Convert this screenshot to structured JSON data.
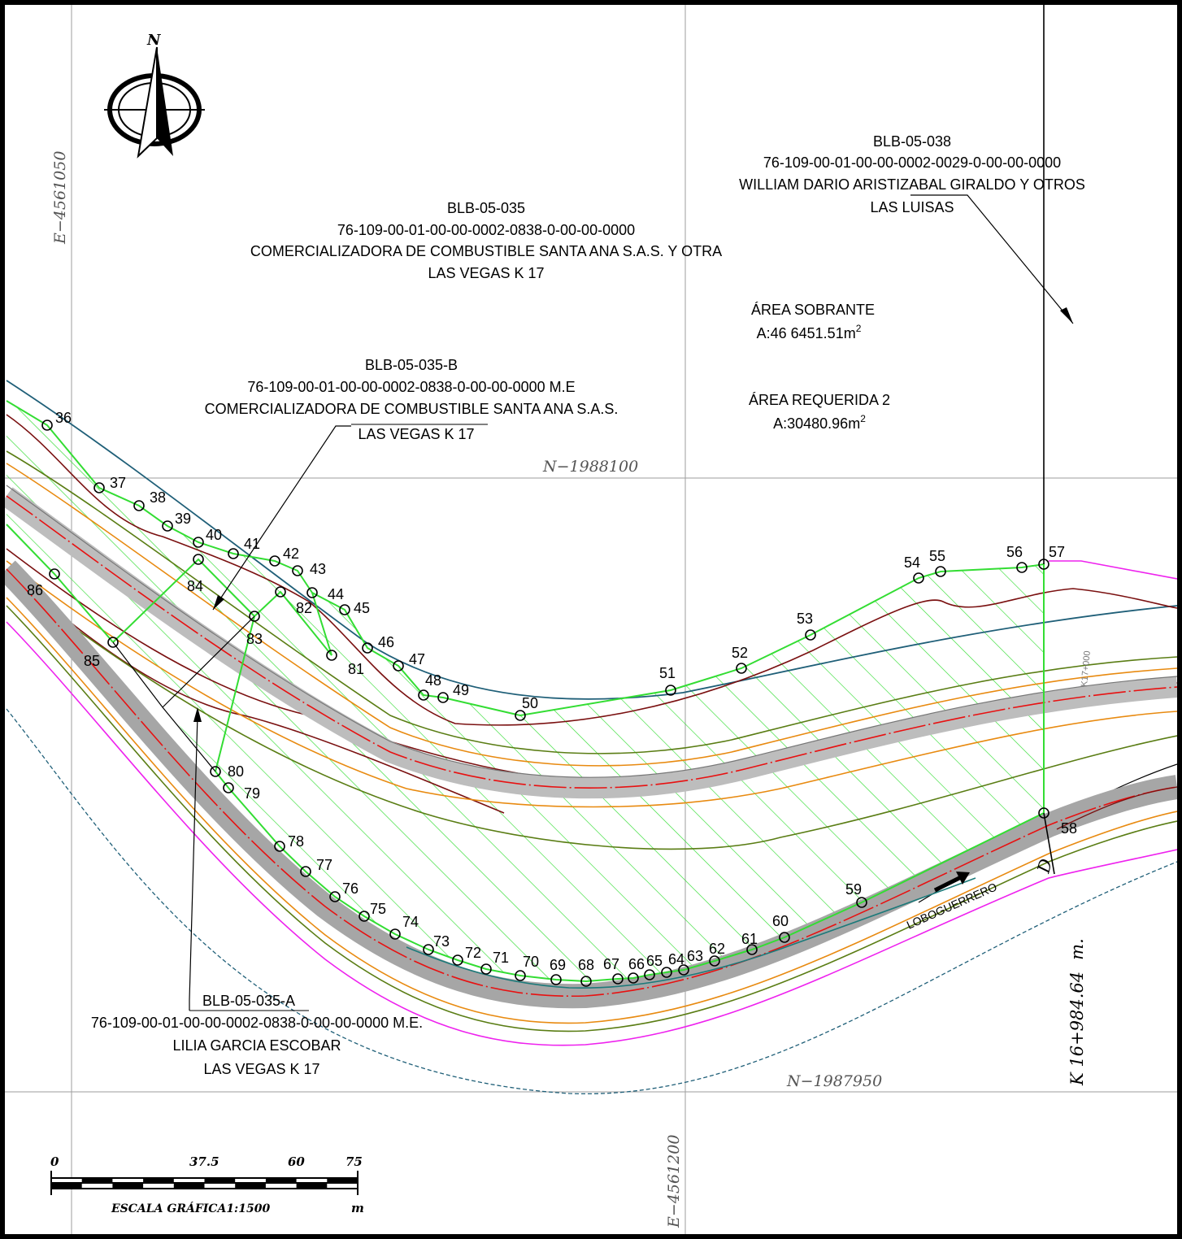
{
  "grid": {
    "e_left": "E−4561050",
    "e_mid": "E−4561200",
    "n_top": "N−1988100",
    "n_bottom": "N−1987950"
  },
  "north_label": "N",
  "parcels": {
    "blb_035": {
      "code": "BLB-05-035",
      "cadastral": "76-109-00-01-00-00-0002-0838-0-00-00-0000",
      "owner": "COMERCIALIZADORA DE COMBUSTIBLE SANTA ANA S.A.S. Y OTRA",
      "place": "LAS VEGAS K 17"
    },
    "blb_035_b": {
      "code": "BLB-05-035-B",
      "cadastral": "76-109-00-01-00-00-0002-0838-0-00-00-0000 M.E",
      "owner": "COMERCIALIZADORA DE COMBUSTIBLE SANTA ANA S.A.S.",
      "place": "LAS VEGAS K 17"
    },
    "blb_038": {
      "code": "BLB-05-038",
      "cadastral": "76-109-00-01-00-00-0002-0029-0-00-00-0000",
      "owner": "WILLIAM DARIO ARISTIZABAL GIRALDO Y OTROS",
      "place": "LAS LUISAS"
    },
    "blb_035_a": {
      "code": "BLB-05-035-A",
      "cadastral": "76-109-00-01-00-00-0002-0838-0-00-00-0000 M.E.",
      "owner": "LILIA GARCIA ESCOBAR",
      "place": "LAS VEGAS K 17"
    }
  },
  "areas": {
    "sobrante_title": "ÁREA SOBRANTE",
    "sobrante_value": "A:46 6451.51m",
    "requerida_title": "ÁREA REQUERIDA 2",
    "requerida_value": "A:30480.96m",
    "sup": "2"
  },
  "road": {
    "station": "K 16+984.64",
    "station_unit": "m.",
    "d_label": "D",
    "name": "LOBOGUERRERO",
    "k17": "K17+000"
  },
  "vertices": [
    "36",
    "37",
    "38",
    "39",
    "40",
    "41",
    "42",
    "43",
    "44",
    "45",
    "46",
    "47",
    "48",
    "49",
    "50",
    "51",
    "52",
    "53",
    "54",
    "55",
    "56",
    "57",
    "58",
    "59",
    "60",
    "61",
    "62",
    "63",
    "64",
    "65",
    "66",
    "67",
    "68",
    "69",
    "70",
    "71",
    "72",
    "73",
    "74",
    "75",
    "76",
    "77",
    "78",
    "79",
    "80",
    "81",
    "82",
    "83",
    "84",
    "85",
    "86"
  ],
  "scale": {
    "ticks": [
      "0",
      "37.5",
      "60",
      "75"
    ],
    "caption": "ESCALA GRÁFICA1:1500",
    "unit": "m"
  },
  "colors": {
    "boundary": "#33dd33",
    "axis": "#e81111",
    "road_fill": "#bdbdbd",
    "contour": "#7a1010",
    "magenta": "#ee22ee",
    "river": "#1f5f78"
  }
}
